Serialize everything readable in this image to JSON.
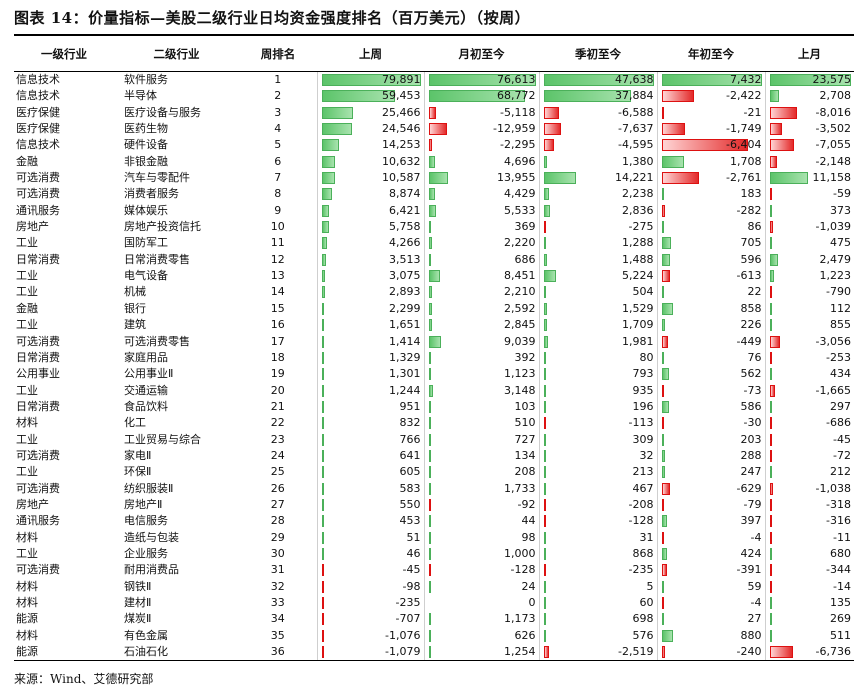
{
  "title": "图表 14：价量指标—美股二级行业日均资金强度排名（百万美元）（按周）",
  "headers": [
    "一级行业",
    "二级行业",
    "周排名",
    "上周",
    "月初至今",
    "季初至今",
    "年初至今",
    "上月"
  ],
  "rows": [
    [
      "信息技术",
      "软件服务",
      "1",
      "79,891",
      "76,613",
      "47,638",
      "7,432",
      "23,575"
    ],
    [
      "信息技术",
      "半导体",
      "2",
      "59,453",
      "68,772",
      "37,884",
      "-2,422",
      "2,708"
    ],
    [
      "医疗保健",
      "医疗设备与服务",
      "3",
      "25,466",
      "-5,118",
      "-6,588",
      "-21",
      "-8,016"
    ],
    [
      "医疗保健",
      "医药生物",
      "4",
      "24,546",
      "-12,959",
      "-7,637",
      "-1,749",
      "-3,502"
    ],
    [
      "信息技术",
      "硬件设备",
      "5",
      "14,253",
      "-2,295",
      "-4,595",
      "-6,404",
      "-7,055"
    ],
    [
      "金融",
      "非银金融",
      "6",
      "10,632",
      "4,696",
      "1,380",
      "1,708",
      "-2,148"
    ],
    [
      "可选消费",
      "汽车与零配件",
      "7",
      "10,587",
      "13,955",
      "14,221",
      "-2,761",
      "11,158"
    ],
    [
      "可选消费",
      "消费者服务",
      "8",
      "8,874",
      "4,429",
      "2,238",
      "183",
      "-59"
    ],
    [
      "通讯服务",
      "媒体娱乐",
      "9",
      "6,421",
      "5,533",
      "2,836",
      "-282",
      "373"
    ],
    [
      "房地产",
      "房地产投资信托",
      "10",
      "5,758",
      "369",
      "-275",
      "86",
      "-1,039"
    ],
    [
      "工业",
      "国防军工",
      "11",
      "4,266",
      "2,220",
      "1,288",
      "705",
      "475"
    ],
    [
      "日常消费",
      "日常消费零售",
      "12",
      "3,513",
      "686",
      "1,488",
      "596",
      "2,479"
    ],
    [
      "工业",
      "电气设备",
      "13",
      "3,075",
      "8,451",
      "5,224",
      "-613",
      "1,223"
    ],
    [
      "工业",
      "机械",
      "14",
      "2,893",
      "2,210",
      "504",
      "22",
      "-790"
    ],
    [
      "金融",
      "银行",
      "15",
      "2,299",
      "2,592",
      "1,529",
      "858",
      "112"
    ],
    [
      "工业",
      "建筑",
      "16",
      "1,651",
      "2,845",
      "1,709",
      "226",
      "855"
    ],
    [
      "可选消费",
      "可选消费零售",
      "17",
      "1,414",
      "9,039",
      "1,981",
      "-449",
      "-3,056"
    ],
    [
      "日常消费",
      "家庭用品",
      "18",
      "1,329",
      "392",
      "80",
      "76",
      "-253"
    ],
    [
      "公用事业",
      "公用事业Ⅱ",
      "19",
      "1,301",
      "1,123",
      "793",
      "562",
      "434"
    ],
    [
      "工业",
      "交通运输",
      "20",
      "1,244",
      "3,148",
      "935",
      "-73",
      "-1,665"
    ],
    [
      "日常消费",
      "食品饮料",
      "21",
      "951",
      "103",
      "196",
      "586",
      "297"
    ],
    [
      "材料",
      "化工",
      "22",
      "832",
      "510",
      "-113",
      "-30",
      "-686"
    ],
    [
      "工业",
      "工业贸易与综合",
      "23",
      "766",
      "727",
      "309",
      "203",
      "-45"
    ],
    [
      "可选消费",
      "家电Ⅱ",
      "24",
      "641",
      "134",
      "32",
      "288",
      "-72"
    ],
    [
      "工业",
      "环保Ⅱ",
      "25",
      "605",
      "208",
      "213",
      "247",
      "212"
    ],
    [
      "可选消费",
      "纺织服装Ⅱ",
      "26",
      "583",
      "1,733",
      "467",
      "-629",
      "-1,038"
    ],
    [
      "房地产",
      "房地产Ⅱ",
      "27",
      "550",
      "-92",
      "-208",
      "-79",
      "-318"
    ],
    [
      "通讯服务",
      "电信服务",
      "28",
      "453",
      "44",
      "-128",
      "397",
      "-316"
    ],
    [
      "材料",
      "造纸与包装",
      "29",
      "51",
      "98",
      "31",
      "-4",
      "-11"
    ],
    [
      "工业",
      "企业服务",
      "30",
      "46",
      "1,000",
      "868",
      "424",
      "680"
    ],
    [
      "可选消费",
      "耐用消费品",
      "31",
      "-45",
      "-128",
      "-235",
      "-391",
      "-344"
    ],
    [
      "材料",
      "钢铁Ⅱ",
      "32",
      "-98",
      "24",
      "5",
      "59",
      "-14"
    ],
    [
      "材料",
      "建材Ⅱ",
      "33",
      "-235",
      "0",
      "60",
      "-4",
      "135"
    ],
    [
      "能源",
      "煤炭Ⅱ",
      "34",
      "-707",
      "1,173",
      "698",
      "27",
      "269"
    ],
    [
      "材料",
      "有色金属",
      "35",
      "-1,076",
      "626",
      "576",
      "880",
      "511"
    ],
    [
      "能源",
      "石油石化",
      "36",
      "-1,079",
      "1,254",
      "-2,519",
      "-240",
      "-6,736"
    ]
  ],
  "colors": {
    "positive_bar": "#5cc46a",
    "negative_bar": "#e32a2a"
  },
  "source": "来源：Wind、艾德研究部"
}
